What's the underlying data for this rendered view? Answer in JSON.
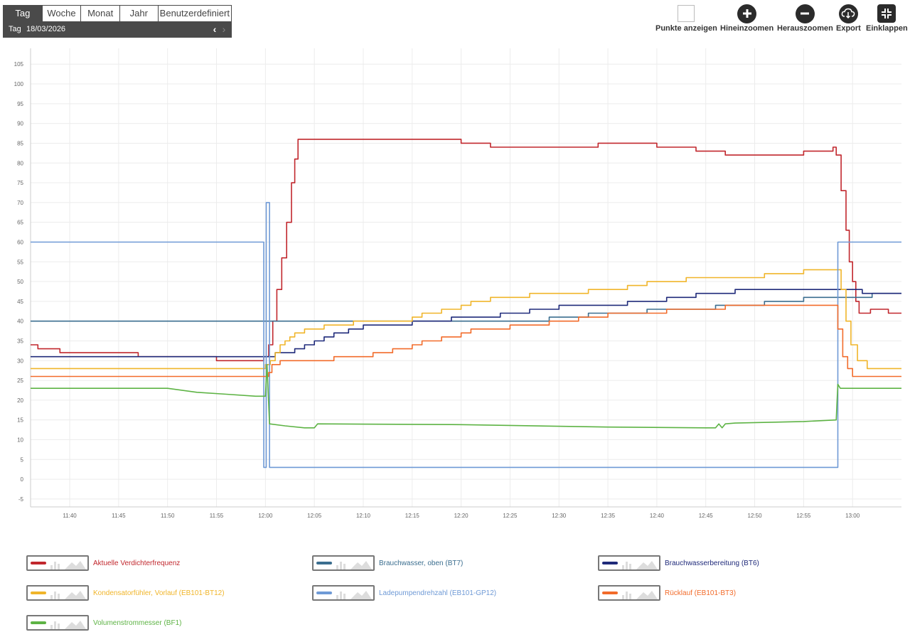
{
  "period": {
    "tabs": [
      "Tag",
      "Woche",
      "Monat",
      "Jahr",
      "Benutzerdefiniert"
    ],
    "active": 0,
    "date_label": "Tag",
    "date": "18/03/2026",
    "prev": "‹",
    "next": "›"
  },
  "toolbar": {
    "points": "Punkte anzeigen",
    "zoom_in": "Hineinzoomen",
    "zoom_out": "Herauszoomen",
    "export": "Export",
    "collapse": "Einklappen"
  },
  "chart_data": {
    "type": "line",
    "ylim": [
      -7,
      109
    ],
    "yticks": [
      -5,
      0,
      5,
      10,
      15,
      20,
      25,
      30,
      35,
      40,
      45,
      50,
      55,
      60,
      65,
      70,
      75,
      80,
      85,
      90,
      95,
      100,
      105
    ],
    "xlim": [
      "11:36",
      "13:05"
    ],
    "xticks": [
      "11:40",
      "11:45",
      "11:50",
      "11:55",
      "12:00",
      "12:05",
      "12:10",
      "12:15",
      "12:20",
      "12:25",
      "12:30",
      "12:35",
      "12:40",
      "12:45",
      "12:50",
      "12:55",
      "13:00"
    ],
    "grid": true,
    "legend_position": "bottom",
    "series": [
      {
        "name": "Aktuelle Verdichterfrequenz",
        "color": "#c1272d",
        "step": true,
        "points": [
          [
            "11:36",
            34
          ],
          [
            "11:36:45",
            33
          ],
          [
            "11:39",
            32
          ],
          [
            "11:47",
            31
          ],
          [
            "11:55",
            30
          ],
          [
            "11:59:50",
            31
          ],
          [
            "12:00:20",
            34
          ],
          [
            "12:00:45",
            40
          ],
          [
            "12:01:10",
            48
          ],
          [
            "12:01:40",
            56
          ],
          [
            "12:02:10",
            65
          ],
          [
            "12:02:40",
            75
          ],
          [
            "12:03:00",
            81
          ],
          [
            "12:03:20",
            86
          ],
          [
            "12:20",
            85
          ],
          [
            "12:23",
            84
          ],
          [
            "12:34",
            85
          ],
          [
            "12:40",
            84
          ],
          [
            "12:44",
            83
          ],
          [
            "12:47",
            82
          ],
          [
            "12:55",
            83
          ],
          [
            "12:58",
            84
          ],
          [
            "12:58:20",
            82
          ],
          [
            "12:58:50",
            73
          ],
          [
            "12:59:20",
            63
          ],
          [
            "12:59:40",
            55
          ],
          [
            "13:00",
            50
          ],
          [
            "13:00:20",
            45
          ],
          [
            "13:00:40",
            42
          ],
          [
            "13:01:50",
            43
          ],
          [
            "13:03:40",
            42
          ],
          [
            "13:05",
            42
          ]
        ]
      },
      {
        "name": "Brauchwasser, oben (BT7)",
        "color": "#3b6e8f",
        "step": true,
        "points": [
          [
            "11:36",
            40
          ],
          [
            "12:29",
            41
          ],
          [
            "12:33",
            42
          ],
          [
            "12:39",
            43
          ],
          [
            "12:46",
            44
          ],
          [
            "12:51",
            45
          ],
          [
            "12:55",
            46
          ],
          [
            "13:02",
            47
          ],
          [
            "13:05",
            47
          ]
        ]
      },
      {
        "name": "Brauchwasserbereitung (BT6)",
        "color": "#1f2a7a",
        "step": true,
        "points": [
          [
            "11:36",
            31
          ],
          [
            "12:01",
            32
          ],
          [
            "12:03",
            33
          ],
          [
            "12:04",
            34
          ],
          [
            "12:05",
            35
          ],
          [
            "12:06",
            36
          ],
          [
            "12:07",
            37
          ],
          [
            "12:08:30",
            38
          ],
          [
            "12:10",
            39
          ],
          [
            "12:15",
            40
          ],
          [
            "12:19",
            41
          ],
          [
            "12:24",
            42
          ],
          [
            "12:27",
            43
          ],
          [
            "12:30",
            44
          ],
          [
            "12:37",
            45
          ],
          [
            "12:41",
            46
          ],
          [
            "12:44",
            47
          ],
          [
            "12:48",
            48
          ],
          [
            "13:01",
            47
          ],
          [
            "13:05",
            47
          ]
        ]
      },
      {
        "name": "Kondensatorfühler, Vorlauf (EB101-BT12)",
        "color": "#f0b52a",
        "step": true,
        "points": [
          [
            "11:36",
            28
          ],
          [
            "12:00",
            29
          ],
          [
            "12:00:30",
            30
          ],
          [
            "12:01",
            32
          ],
          [
            "12:01:30",
            34
          ],
          [
            "12:02",
            35
          ],
          [
            "12:02:30",
            36
          ],
          [
            "12:03",
            37
          ],
          [
            "12:04",
            38
          ],
          [
            "12:06",
            39
          ],
          [
            "12:09",
            40
          ],
          [
            "12:15",
            41
          ],
          [
            "12:16",
            42
          ],
          [
            "12:18",
            43
          ],
          [
            "12:20",
            44
          ],
          [
            "12:21",
            45
          ],
          [
            "12:23",
            46
          ],
          [
            "12:27",
            47
          ],
          [
            "12:33",
            48
          ],
          [
            "12:37",
            49
          ],
          [
            "12:39",
            50
          ],
          [
            "12:43",
            51
          ],
          [
            "12:51",
            52
          ],
          [
            "12:55",
            53
          ],
          [
            "12:58:20",
            53
          ],
          [
            "12:58:50",
            48
          ],
          [
            "12:59:20",
            40
          ],
          [
            "12:59:50",
            34
          ],
          [
            "13:00:30",
            30
          ],
          [
            "13:01:30",
            28
          ],
          [
            "13:05",
            28
          ]
        ]
      },
      {
        "name": "Ladepumpendrehzahl (EB101-GP12)",
        "color": "#6f9ad6",
        "step": true,
        "points": [
          [
            "11:36",
            60
          ],
          [
            "11:59:50",
            3
          ],
          [
            "12:00:05",
            70
          ],
          [
            "12:00:25",
            3
          ],
          [
            "12:58:30",
            60
          ],
          [
            "13:05",
            60
          ]
        ]
      },
      {
        "name": "Rücklauf (EB101-BT3)",
        "color": "#f26b2a",
        "step": true,
        "points": [
          [
            "11:36",
            26
          ],
          [
            "12:00:20",
            27
          ],
          [
            "12:00:40",
            29
          ],
          [
            "12:01:30",
            30
          ],
          [
            "12:07",
            31
          ],
          [
            "12:11",
            32
          ],
          [
            "12:13",
            33
          ],
          [
            "12:15",
            34
          ],
          [
            "12:16",
            35
          ],
          [
            "12:18",
            36
          ],
          [
            "12:20",
            37
          ],
          [
            "12:21",
            38
          ],
          [
            "12:25",
            39
          ],
          [
            "12:29",
            40
          ],
          [
            "12:32",
            41
          ],
          [
            "12:35",
            42
          ],
          [
            "12:41",
            43
          ],
          [
            "12:47",
            44
          ],
          [
            "12:58",
            44
          ],
          [
            "12:58:30",
            38
          ],
          [
            "12:59",
            31
          ],
          [
            "12:59:30",
            28
          ],
          [
            "13:00",
            26
          ],
          [
            "13:05",
            26
          ]
        ]
      },
      {
        "name": "Volumenstrommesser (BF1)",
        "color": "#5db344",
        "step": false,
        "points": [
          [
            "11:36",
            23
          ],
          [
            "11:50",
            23
          ],
          [
            "11:53",
            22
          ],
          [
            "11:56",
            21.5
          ],
          [
            "11:59",
            21
          ],
          [
            "12:00",
            21
          ],
          [
            "12:00:10",
            29
          ],
          [
            "12:00:25",
            14
          ],
          [
            "12:02",
            13.5
          ],
          [
            "12:04",
            13
          ],
          [
            "12:05",
            13
          ],
          [
            "12:05:20",
            14
          ],
          [
            "12:20",
            13.8
          ],
          [
            "12:35",
            13.2
          ],
          [
            "12:45",
            13
          ],
          [
            "12:46",
            13
          ],
          [
            "12:46:20",
            14
          ],
          [
            "12:46:40",
            13
          ],
          [
            "12:47",
            14
          ],
          [
            "12:48",
            14.2
          ],
          [
            "12:55",
            14.6
          ],
          [
            "12:58:20",
            15
          ],
          [
            "12:58:30",
            24
          ],
          [
            "12:58:45",
            23
          ],
          [
            "13:05",
            23
          ]
        ]
      }
    ]
  }
}
